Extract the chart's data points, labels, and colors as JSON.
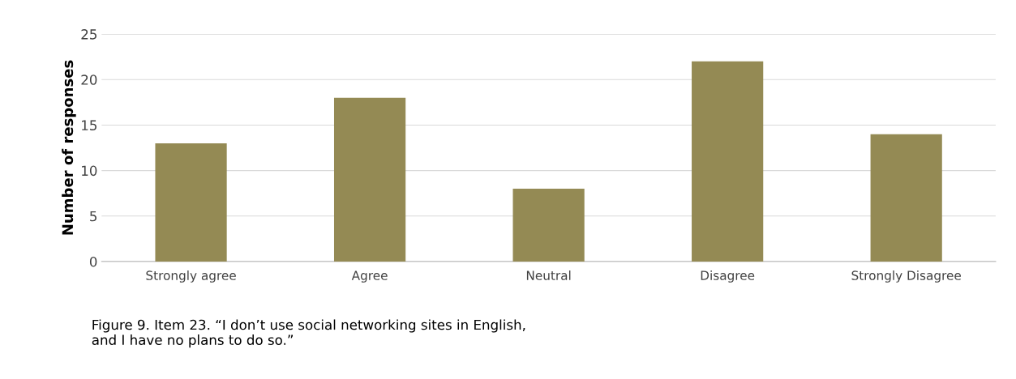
{
  "chart_data": {
    "type": "bar",
    "ylabel": "Number of responses",
    "categories": [
      "Strongly agree",
      "Agree",
      "Neutral",
      "Disagree",
      "Strongly Disagree"
    ],
    "values": [
      13,
      18,
      8,
      22,
      14
    ],
    "color": "#948a54",
    "ylim": [
      0,
      25
    ],
    "yticks": [
      0,
      5,
      10,
      15,
      20,
      25
    ],
    "grid": "y",
    "legend": false,
    "annotations": [
      "Figure 9. Item 23. “I don’t use social networking sites in English,\nand I have no plans to do so.”"
    ]
  }
}
